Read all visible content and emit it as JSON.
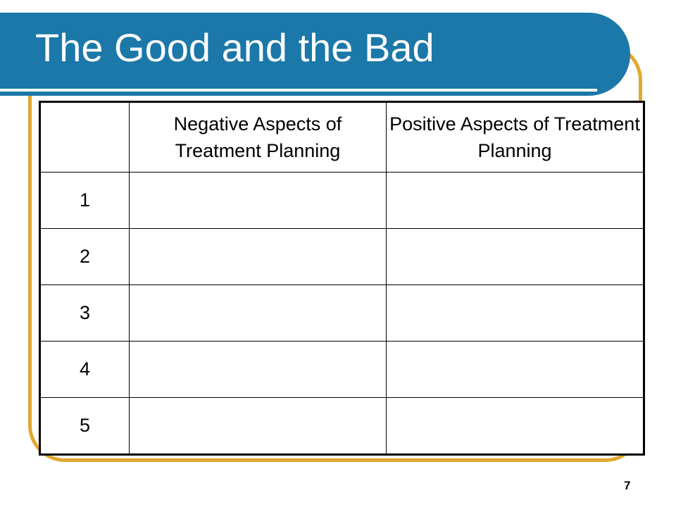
{
  "slide": {
    "title": "The Good and the Bad",
    "page_number": "7"
  },
  "table": {
    "headers": [
      "",
      "Negative Aspects of Treatment Planning",
      "Positive Aspects of Treatment Planning"
    ],
    "rows": [
      {
        "num": "1",
        "negative": "",
        "positive": ""
      },
      {
        "num": "2",
        "negative": "",
        "positive": ""
      },
      {
        "num": "3",
        "negative": "",
        "positive": ""
      },
      {
        "num": "4",
        "negative": "",
        "positive": ""
      },
      {
        "num": "5",
        "negative": "",
        "positive": ""
      }
    ]
  },
  "colors": {
    "title_bar": "#1b78a8",
    "frame_accent": "#e2a72e",
    "title_text": "#ffffff"
  }
}
